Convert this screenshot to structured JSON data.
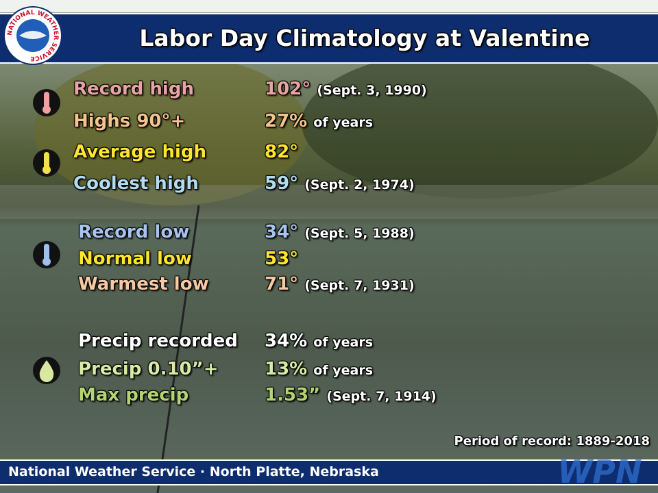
{
  "header": {
    "logo_text": "NATIONAL WEATHER SERVICE",
    "title": "Labor Day Climatology at Valentine"
  },
  "sections": [
    {
      "rows": [
        {
          "label": "Record high",
          "value": "102°",
          "note": "(Sept. 3, 1990)"
        },
        {
          "label": "Highs 90°+",
          "value": "27%",
          "note": "of years"
        },
        {
          "label": "Average high",
          "value": "82°"
        },
        {
          "label": "Coolest high",
          "value": "59°",
          "note": "(Sept. 2, 1974)"
        }
      ]
    },
    {
      "rows": [
        {
          "label": "Record low",
          "value": "34°",
          "note": "(Sept. 5, 1988)"
        },
        {
          "label": "Normal low",
          "value": "53°"
        },
        {
          "label": "Warmest low",
          "value": "71°",
          "note": "(Sept. 7, 1931)"
        }
      ]
    },
    {
      "rows": [
        {
          "label": "Precip recorded",
          "value": "34%",
          "note": "of years"
        },
        {
          "label": "Precip 0.10”+",
          "value": "13%",
          "note": "of years"
        },
        {
          "label": "Max precip",
          "value": "1.53”",
          "note": "(Sept. 7, 1914)"
        }
      ]
    }
  ],
  "period": "Period of record: 1889-2018",
  "footer": {
    "text": "National Weather Service · North Platte, Nebraska",
    "badge": "WPN"
  }
}
